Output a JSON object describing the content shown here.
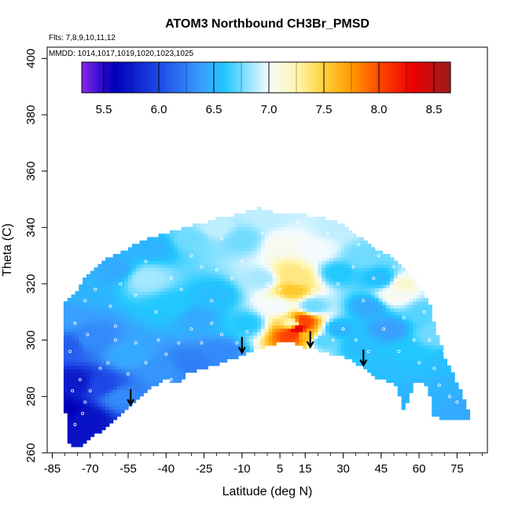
{
  "chart_data": {
    "type": "heatmap",
    "title": "ATOM3 Northbound CH3Br_PMSD",
    "subtitle_flights": "Flts: 7,8,9,10,11,12",
    "subtitle_dates": "MMDD: 1014,1017,1019,1020,1023,1025",
    "xlabel": "Latitude (deg N)",
    "ylabel": "Theta (C)",
    "xlim": [
      -87,
      87
    ],
    "ylim": [
      260,
      404
    ],
    "xticks": [
      -85,
      -70,
      -55,
      -40,
      -25,
      -10,
      5,
      15,
      30,
      45,
      60,
      75
    ],
    "xtick_labels": [
      "-85",
      "-70",
      "-55",
      "-40",
      "-25",
      "-10",
      "5",
      "15",
      "30",
      "45",
      "60",
      "75"
    ],
    "yticks": [
      260,
      280,
      300,
      320,
      340,
      360,
      380,
      400
    ],
    "ytick_labels": [
      "260",
      "280",
      "300",
      "320",
      "340",
      "360",
      "380",
      "400"
    ],
    "colorbar": {
      "range": [
        5.3,
        8.65
      ],
      "ticks": [
        5.5,
        6.0,
        6.5,
        7.0,
        7.5,
        8.0,
        8.5
      ],
      "tick_labels": [
        "5.5",
        "6.0",
        "6.5",
        "7.0",
        "7.5",
        "8.0",
        "8.5"
      ],
      "stops": [
        {
          "v": 5.3,
          "c": "#8a2be2"
        },
        {
          "v": 5.45,
          "c": "#3a10d8"
        },
        {
          "v": 5.6,
          "c": "#0000b8"
        },
        {
          "v": 6.0,
          "c": "#1e48e6"
        },
        {
          "v": 6.4,
          "c": "#3aa0ff"
        },
        {
          "v": 6.6,
          "c": "#22c8ff"
        },
        {
          "v": 7.0,
          "c": "#f4fbff"
        },
        {
          "v": 7.25,
          "c": "#fff6b0"
        },
        {
          "v": 7.5,
          "c": "#ffd23c"
        },
        {
          "v": 7.75,
          "c": "#ff9a00"
        },
        {
          "v": 8.0,
          "c": "#ff4a00"
        },
        {
          "v": 8.3,
          "c": "#ee0000"
        },
        {
          "v": 8.65,
          "c": "#9c1c1c"
        }
      ]
    },
    "field": {
      "anchors": [
        {
          "lat": -80,
          "theta": 275,
          "value": 5.6
        },
        {
          "lat": -76,
          "theta": 285,
          "value": 5.75
        },
        {
          "lat": -72,
          "theta": 272,
          "value": 5.7
        },
        {
          "lat": -65,
          "theta": 284,
          "value": 6.0
        },
        {
          "lat": -58,
          "theta": 280,
          "value": 6.3
        },
        {
          "lat": -78,
          "theta": 298,
          "value": 6.1
        },
        {
          "lat": -80,
          "theta": 308,
          "value": 6.4
        },
        {
          "lat": -70,
          "theta": 300,
          "value": 6.3
        },
        {
          "lat": -55,
          "theta": 295,
          "value": 6.45
        },
        {
          "lat": -42,
          "theta": 289,
          "value": 6.35
        },
        {
          "lat": -30,
          "theta": 292,
          "value": 6.25
        },
        {
          "lat": -18,
          "theta": 296,
          "value": 6.3
        },
        {
          "lat": -72,
          "theta": 318,
          "value": 6.5
        },
        {
          "lat": -60,
          "theta": 325,
          "value": 6.45
        },
        {
          "lat": -48,
          "theta": 322,
          "value": 6.85
        },
        {
          "lat": -38,
          "theta": 312,
          "value": 6.6
        },
        {
          "lat": -28,
          "theta": 308,
          "value": 6.45
        },
        {
          "lat": -20,
          "theta": 316,
          "value": 6.55
        },
        {
          "lat": -8,
          "theta": 306,
          "value": 6.6
        },
        {
          "lat": -45,
          "theta": 333,
          "value": 6.5
        },
        {
          "lat": -30,
          "theta": 336,
          "value": 6.75
        },
        {
          "lat": -20,
          "theta": 340,
          "value": 6.9
        },
        {
          "lat": -10,
          "theta": 336,
          "value": 6.75
        },
        {
          "lat": -2,
          "theta": 322,
          "value": 6.85
        },
        {
          "lat": 0,
          "theta": 344,
          "value": 6.9
        },
        {
          "lat": 6,
          "theta": 334,
          "value": 7.05
        },
        {
          "lat": 9,
          "theta": 324,
          "value": 7.35
        },
        {
          "lat": 10,
          "theta": 318,
          "value": 7.55
        },
        {
          "lat": 12,
          "theta": 322,
          "value": 7.35
        },
        {
          "lat": 4,
          "theta": 312,
          "value": 7.0
        },
        {
          "lat": 10,
          "theta": 306,
          "value": 7.2
        },
        {
          "lat": 10,
          "theta": 302,
          "value": 8.05
        },
        {
          "lat": 12,
          "theta": 304,
          "value": 8.4
        },
        {
          "lat": 14,
          "theta": 307,
          "value": 8.05
        },
        {
          "lat": 15,
          "theta": 302,
          "value": 7.6
        },
        {
          "lat": 18,
          "theta": 312,
          "value": 6.75
        },
        {
          "lat": 22,
          "theta": 300,
          "value": 6.7
        },
        {
          "lat": 20,
          "theta": 332,
          "value": 7.0
        },
        {
          "lat": 28,
          "theta": 340,
          "value": 6.9
        },
        {
          "lat": 28,
          "theta": 324,
          "value": 6.6
        },
        {
          "lat": 28,
          "theta": 304,
          "value": 6.5
        },
        {
          "lat": 36,
          "theta": 298,
          "value": 6.55
        },
        {
          "lat": 38,
          "theta": 330,
          "value": 6.75
        },
        {
          "lat": 40,
          "theta": 312,
          "value": 6.45
        },
        {
          "lat": 45,
          "theta": 322,
          "value": 6.55
        },
        {
          "lat": 50,
          "theta": 316,
          "value": 7.05
        },
        {
          "lat": 54,
          "theta": 320,
          "value": 7.15
        },
        {
          "lat": 48,
          "theta": 304,
          "value": 6.4
        },
        {
          "lat": 48,
          "theta": 290,
          "value": 6.55
        },
        {
          "lat": 56,
          "theta": 296,
          "value": 6.6
        },
        {
          "lat": 62,
          "theta": 310,
          "value": 6.7
        },
        {
          "lat": 66,
          "theta": 302,
          "value": 6.75
        },
        {
          "lat": 70,
          "theta": 292,
          "value": 6.55
        },
        {
          "lat": 74,
          "theta": 284,
          "value": 6.5
        },
        {
          "lat": 78,
          "theta": 276,
          "value": 6.45
        },
        {
          "lat": 60,
          "theta": 280,
          "value": 6.5
        },
        {
          "lat": 64,
          "theta": 322,
          "value": 6.8
        }
      ]
    },
    "outline": [
      [
        -81,
        312
      ],
      [
        -80,
        314
      ],
      [
        -75,
        318
      ],
      [
        -72,
        322
      ],
      [
        -68,
        326
      ],
      [
        -63,
        329
      ],
      [
        -58,
        331
      ],
      [
        -52,
        334
      ],
      [
        -48,
        336
      ],
      [
        -40,
        338
      ],
      [
        -32,
        340
      ],
      [
        -24,
        342
      ],
      [
        -18,
        344
      ],
      [
        -14,
        344
      ],
      [
        -8,
        346
      ],
      [
        -3,
        347
      ],
      [
        0,
        346
      ],
      [
        6,
        345
      ],
      [
        12,
        345
      ],
      [
        18,
        344
      ],
      [
        24,
        343
      ],
      [
        30,
        341
      ],
      [
        36,
        337
      ],
      [
        42,
        333
      ],
      [
        48,
        330
      ],
      [
        54,
        326
      ],
      [
        58,
        322
      ],
      [
        61,
        318
      ],
      [
        64,
        313
      ],
      [
        66,
        306
      ],
      [
        68,
        300
      ],
      [
        70,
        294
      ],
      [
        72,
        290
      ],
      [
        74,
        287
      ],
      [
        76,
        283
      ],
      [
        78,
        279
      ],
      [
        80,
        274
      ],
      [
        80,
        272
      ],
      [
        70,
        272
      ],
      [
        65,
        273
      ],
      [
        64,
        282
      ],
      [
        61,
        285
      ],
      [
        58,
        285
      ],
      [
        56,
        280
      ],
      [
        55,
        277
      ],
      [
        53,
        275
      ],
      [
        52,
        282
      ],
      [
        50,
        285
      ],
      [
        44,
        286
      ],
      [
        40,
        289
      ],
      [
        35,
        292
      ],
      [
        30,
        294
      ],
      [
        22,
        296
      ],
      [
        16,
        297
      ],
      [
        10,
        299
      ],
      [
        5,
        299
      ],
      [
        0,
        298
      ],
      [
        -6,
        296
      ],
      [
        -12,
        294
      ],
      [
        -18,
        292
      ],
      [
        -25,
        290
      ],
      [
        -32,
        288
      ],
      [
        -35,
        285
      ],
      [
        -41,
        286
      ],
      [
        -46,
        283
      ],
      [
        -52,
        278
      ],
      [
        -58,
        273
      ],
      [
        -64,
        269
      ],
      [
        -70,
        265
      ],
      [
        -75,
        262
      ],
      [
        -78,
        262
      ],
      [
        -80,
        276
      ],
      [
        -81,
        290
      ]
    ],
    "samples": [
      [
        -78,
        296
      ],
      [
        -77,
        282
      ],
      [
        -76,
        270
      ],
      [
        -74,
        286
      ],
      [
        -73,
        274
      ],
      [
        -72,
        278
      ],
      [
        -71,
        302
      ],
      [
        -70,
        282
      ],
      [
        -66,
        290
      ],
      [
        -63,
        292
      ],
      [
        -60,
        300
      ],
      [
        -55,
        288
      ],
      [
        -52,
        299
      ],
      [
        -48,
        292
      ],
      [
        -43,
        300
      ],
      [
        -40,
        295
      ],
      [
        -38,
        286
      ],
      [
        -35,
        299
      ],
      [
        -30,
        304
      ],
      [
        -26,
        299
      ],
      [
        -22,
        306
      ],
      [
        -18,
        302
      ],
      [
        -12,
        299
      ],
      [
        -8,
        303
      ],
      [
        -76,
        306
      ],
      [
        -72,
        314
      ],
      [
        -68,
        318
      ],
      [
        -62,
        312
      ],
      [
        -58,
        320
      ],
      [
        -52,
        316
      ],
      [
        -48,
        328
      ],
      [
        -44,
        310
      ],
      [
        -38,
        322
      ],
      [
        -34,
        318
      ],
      [
        -30,
        330
      ],
      [
        -26,
        326
      ],
      [
        -22,
        314
      ],
      [
        -18,
        336
      ],
      [
        -14,
        322
      ],
      [
        -10,
        328
      ],
      [
        -6,
        314
      ],
      [
        -2,
        338
      ],
      [
        2,
        328
      ],
      [
        5,
        318
      ],
      [
        8,
        336
      ],
      [
        12,
        342
      ],
      [
        14,
        326
      ],
      [
        18,
        318
      ],
      [
        20,
        334
      ],
      [
        24,
        338
      ],
      [
        28,
        320
      ],
      [
        30,
        304
      ],
      [
        34,
        326
      ],
      [
        36,
        334
      ],
      [
        38,
        314
      ],
      [
        42,
        322
      ],
      [
        44,
        330
      ],
      [
        46,
        304
      ],
      [
        48,
        314
      ],
      [
        50,
        326
      ],
      [
        52,
        296
      ],
      [
        54,
        308
      ],
      [
        56,
        318
      ],
      [
        58,
        300
      ],
      [
        60,
        292
      ],
      [
        62,
        310
      ],
      [
        64,
        300
      ],
      [
        66,
        290
      ],
      [
        68,
        284
      ],
      [
        70,
        296
      ],
      [
        72,
        280
      ],
      [
        75,
        278
      ],
      [
        -60,
        305
      ],
      [
        -20,
        325
      ],
      [
        0,
        320
      ],
      [
        35,
        300
      ],
      [
        40,
        296
      ],
      [
        26,
        300
      ]
    ],
    "arrows": [
      -54,
      -10,
      17,
      38
    ]
  }
}
